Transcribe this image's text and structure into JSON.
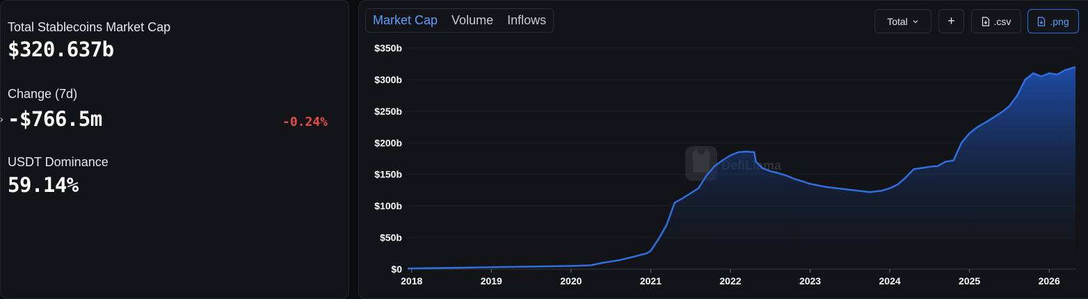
{
  "stats": {
    "total_label": "Total Stablecoins Market Cap",
    "total_value": "$320.637b",
    "change_label": "Change (7d)",
    "change_value": "-$766.5m",
    "change_pct": "-0.24%",
    "dominance_label": "USDT Dominance",
    "dominance_value": "59.14%"
  },
  "tabs": [
    {
      "label": "Market Cap",
      "active": true
    },
    {
      "label": "Volume",
      "active": false
    },
    {
      "label": "Inflows",
      "active": false
    }
  ],
  "controls": {
    "dropdown_label": "Total",
    "add_label": "+",
    "csv_label": ".csv",
    "png_label": ".png"
  },
  "watermark": "DefiLlama",
  "colors": {
    "line": "#2f6fe0",
    "negative": "#e24c4b",
    "accent": "#5c9dff"
  },
  "chart_data": {
    "type": "area",
    "title": "",
    "xlabel": "",
    "ylabel": "",
    "ylim": [
      0,
      350
    ],
    "xlim": [
      2017.95,
      2026.33
    ],
    "yticks": [
      "$0",
      "$50b",
      "$100b",
      "$150b",
      "$200b",
      "$250b",
      "$300b",
      "$350b"
    ],
    "ytick_values": [
      0,
      50,
      100,
      150,
      200,
      250,
      300,
      350
    ],
    "xticks": [
      "2018",
      "2019",
      "2020",
      "2021",
      "2022",
      "2023",
      "2024",
      "2025",
      "2026"
    ],
    "xtick_values": [
      2018,
      2019,
      2020,
      2021,
      2022,
      2023,
      2024,
      2025,
      2026
    ],
    "series": [
      {
        "x": [
          2017.95,
          2018.5,
          2019.0,
          2019.5,
          2020.0,
          2020.25,
          2020.4,
          2020.6,
          2020.8,
          2020.95,
          2021.0,
          2021.1,
          2021.2,
          2021.3,
          2021.4,
          2021.5,
          2021.6,
          2021.7,
          2021.8,
          2021.9,
          2022.0,
          2022.1,
          2022.2,
          2022.3,
          2022.32,
          2022.4,
          2022.5,
          2022.6,
          2022.7,
          2022.8,
          2022.9,
          2023.0,
          2023.2,
          2023.4,
          2023.6,
          2023.75,
          2023.9,
          2024.0,
          2024.1,
          2024.2,
          2024.3,
          2024.4,
          2024.5,
          2024.6,
          2024.7,
          2024.8,
          2024.9,
          2025.0,
          2025.1,
          2025.2,
          2025.3,
          2025.4,
          2025.5,
          2025.6,
          2025.7,
          2025.8,
          2025.9,
          2026.0,
          2026.1,
          2026.2,
          2026.33
        ],
        "values": [
          1,
          2,
          3,
          4,
          5,
          6,
          10,
          14,
          20,
          25,
          29,
          48,
          70,
          105,
          112,
          120,
          128,
          148,
          163,
          172,
          180,
          185,
          186,
          185,
          170,
          160,
          155,
          152,
          148,
          143,
          139,
          135,
          130,
          127,
          124,
          122,
          124,
          128,
          134,
          145,
          158,
          160,
          162,
          163,
          170,
          172,
          200,
          215,
          225,
          232,
          240,
          248,
          258,
          275,
          300,
          310,
          305,
          310,
          308,
          315,
          320
        ]
      }
    ]
  }
}
